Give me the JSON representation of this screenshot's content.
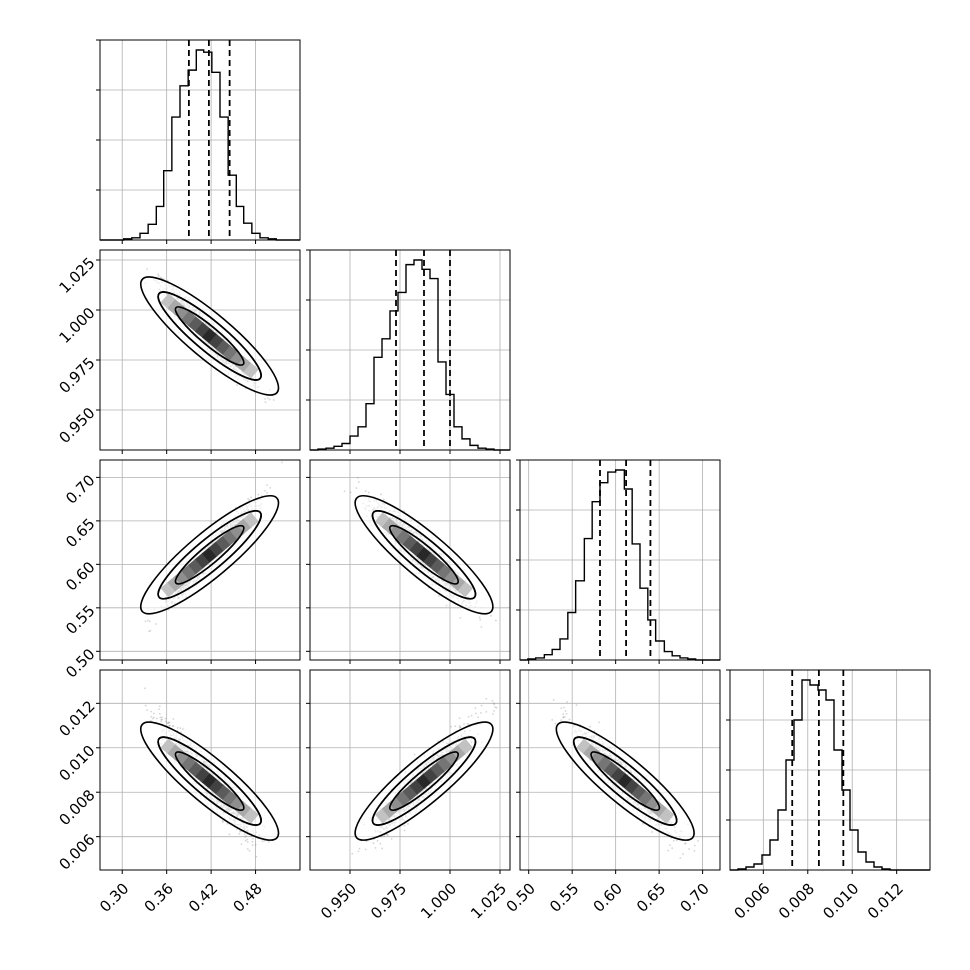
{
  "figure": {
    "type": "corner-plot",
    "description_colors": {
      "hist_line": "#000000",
      "grid": "#b0b0b0",
      "scatter": "#888888",
      "density": "#000000"
    }
  },
  "chart_data": {
    "type": "corner",
    "dimensions": 4,
    "parameters": [
      {
        "index": 0,
        "range": [
          0.27,
          0.54
        ],
        "ticks": [
          0.3,
          0.36,
          0.42,
          0.48
        ],
        "tick_labels": [
          "0.30",
          "0.36",
          "0.42",
          "0.48"
        ],
        "quantiles": [
          0.39,
          0.417,
          0.445
        ],
        "hist_bins": [
          0.27,
          0.281,
          0.292,
          0.302,
          0.313,
          0.324,
          0.335,
          0.346,
          0.356,
          0.367,
          0.378,
          0.389,
          0.4,
          0.41,
          0.421,
          0.432,
          0.443,
          0.454,
          0.464,
          0.475,
          0.486,
          0.497,
          0.508,
          0.518,
          0.529,
          0.54
        ],
        "hist_counts": [
          0,
          0,
          0,
          1,
          2,
          6,
          14,
          30,
          62,
          110,
          138,
          152,
          170,
          168,
          150,
          110,
          58,
          30,
          15,
          6,
          2,
          1,
          0,
          0,
          0
        ]
      },
      {
        "index": 1,
        "range": [
          0.93,
          1.03
        ],
        "ticks": [
          0.95,
          0.975,
          1.0,
          1.025
        ],
        "tick_labels": [
          "0.950",
          "0.975",
          "1.000",
          "1.025"
        ],
        "quantiles": [
          0.973,
          0.987,
          1.0
        ],
        "hist_bins": [
          0.93,
          0.934,
          0.938,
          0.942,
          0.946,
          0.95,
          0.954,
          0.958,
          0.962,
          0.966,
          0.97,
          0.974,
          0.978,
          0.982,
          0.986,
          0.99,
          0.994,
          0.998,
          1.002,
          1.006,
          1.01,
          1.014,
          1.018,
          1.022,
          1.026,
          1.03
        ],
        "hist_counts": [
          0,
          1,
          2,
          4,
          7,
          15,
          25,
          50,
          100,
          120,
          150,
          170,
          200,
          205,
          195,
          185,
          95,
          60,
          25,
          12,
          5,
          2,
          1,
          0,
          0
        ]
      },
      {
        "index": 2,
        "range": [
          0.49,
          0.72
        ],
        "ticks": [
          0.5,
          0.55,
          0.6,
          0.65,
          0.7
        ],
        "tick_labels": [
          "0.50",
          "0.55",
          "0.60",
          "0.65",
          "0.70"
        ],
        "quantiles": [
          0.582,
          0.612,
          0.64
        ],
        "hist_bins": [
          0.49,
          0.499,
          0.508,
          0.518,
          0.527,
          0.536,
          0.545,
          0.554,
          0.564,
          0.573,
          0.582,
          0.591,
          0.6,
          0.61,
          0.619,
          0.628,
          0.637,
          0.646,
          0.656,
          0.665,
          0.674,
          0.683,
          0.692,
          0.702,
          0.711,
          0.72
        ],
        "hist_counts": [
          0,
          1,
          2,
          5,
          10,
          20,
          45,
          75,
          115,
          150,
          168,
          178,
          180,
          162,
          110,
          68,
          38,
          18,
          8,
          4,
          2,
          1,
          0,
          0,
          0
        ]
      },
      {
        "index": 3,
        "range": [
          0.0045,
          0.0135
        ],
        "ticks": [
          0.006,
          0.008,
          0.01,
          0.012
        ],
        "tick_labels": [
          "0.006",
          "0.008",
          "0.010",
          "0.012"
        ],
        "quantiles": [
          0.0073,
          0.0085,
          0.0096
        ],
        "hist_bins": [
          0.0045,
          0.00486,
          0.00522,
          0.00558,
          0.00594,
          0.0063,
          0.00666,
          0.00702,
          0.00738,
          0.00774,
          0.0081,
          0.00846,
          0.00882,
          0.00918,
          0.00954,
          0.0099,
          0.01026,
          0.01062,
          0.01098,
          0.01134,
          0.0117,
          0.01206,
          0.01242,
          0.01278,
          0.01314,
          0.0135
        ],
        "hist_counts": [
          0,
          1,
          3,
          6,
          15,
          30,
          60,
          110,
          150,
          190,
          185,
          180,
          170,
          120,
          80,
          40,
          18,
          8,
          3,
          1,
          0,
          0,
          0,
          0,
          0
        ]
      }
    ],
    "pairs": [
      {
        "row": 1,
        "col": 0,
        "mean": [
          0.418,
          0.987
        ],
        "sd": [
          0.027,
          0.011
        ],
        "rho": -0.95
      },
      {
        "row": 2,
        "col": 0,
        "mean": [
          0.418,
          0.611
        ],
        "sd": [
          0.027,
          0.026
        ],
        "rho": 0.96
      },
      {
        "row": 2,
        "col": 1,
        "mean": [
          0.987,
          0.611
        ],
        "sd": [
          0.011,
          0.026
        ],
        "rho": -0.93
      },
      {
        "row": 3,
        "col": 0,
        "mean": [
          0.418,
          0.0085
        ],
        "sd": [
          0.027,
          0.0011
        ],
        "rho": -0.93
      },
      {
        "row": 3,
        "col": 1,
        "mean": [
          0.987,
          0.0085
        ],
        "sd": [
          0.011,
          0.0011
        ],
        "rho": 0.92
      },
      {
        "row": 3,
        "col": 2,
        "mean": [
          0.611,
          0.0085
        ],
        "sd": [
          0.026,
          0.0011
        ],
        "rho": -0.94
      }
    ],
    "grid": true
  }
}
